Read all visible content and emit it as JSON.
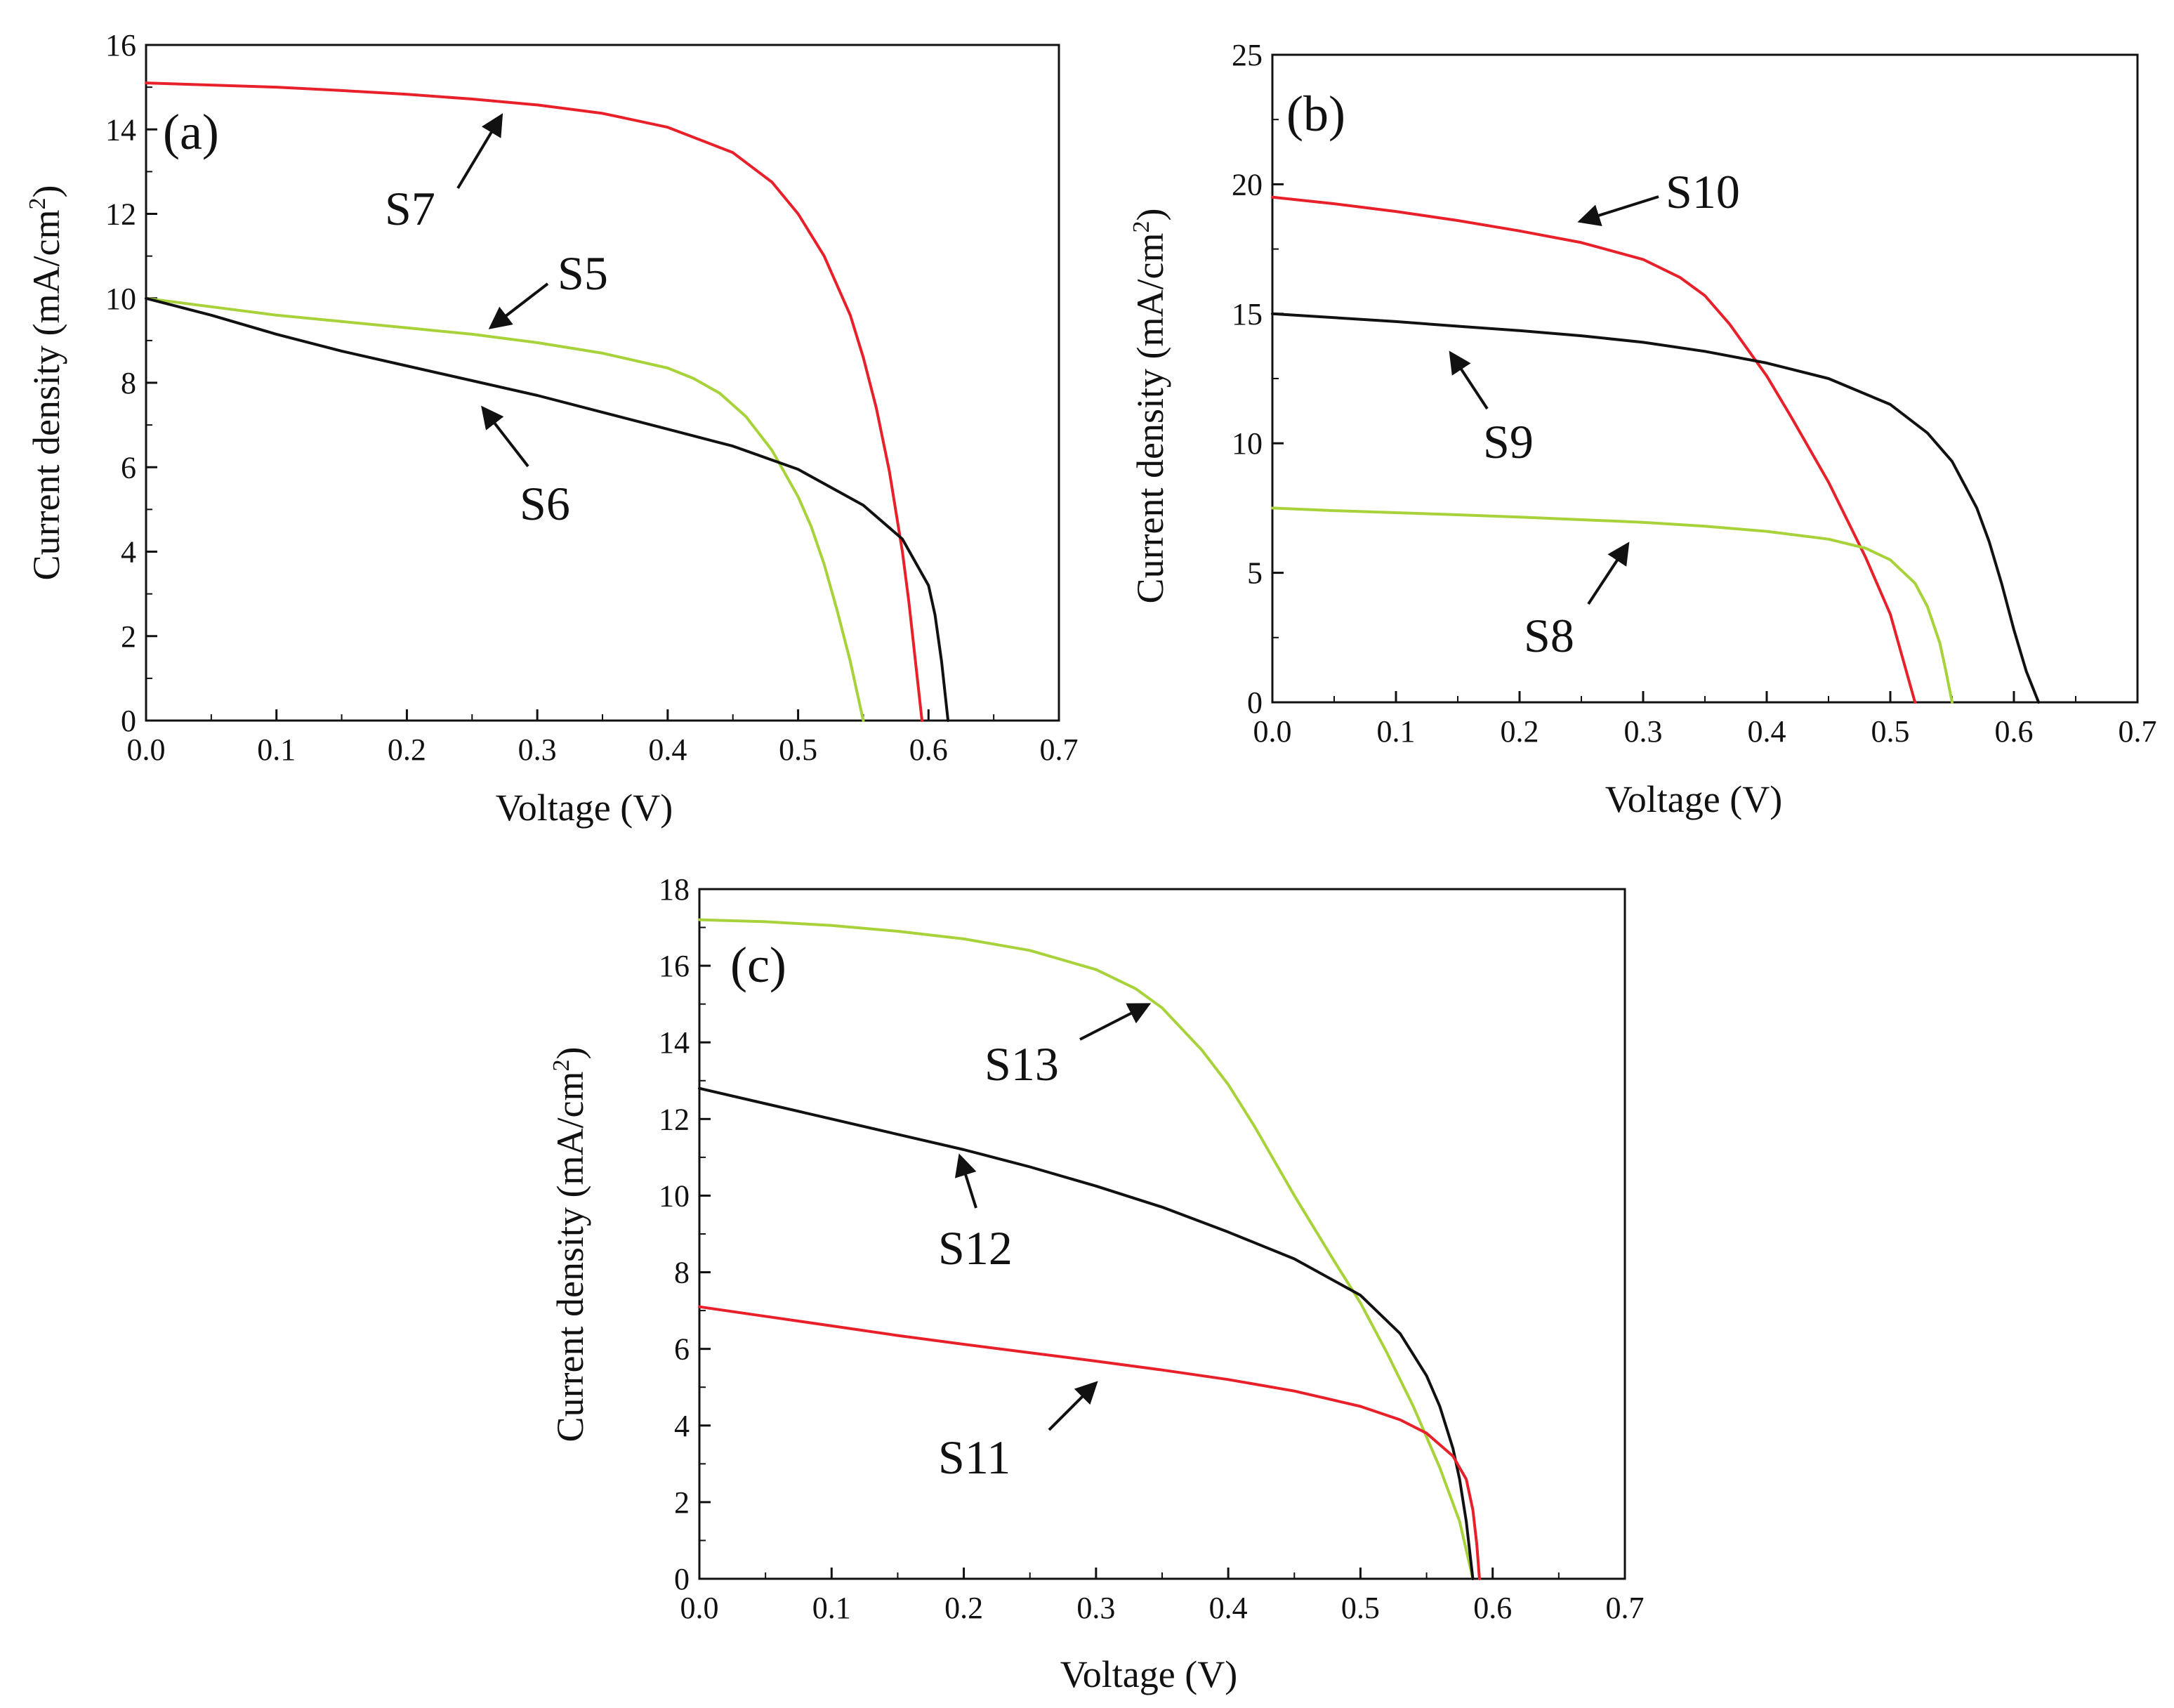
{
  "colors": {
    "black": "#111111",
    "red": "#e8202a",
    "green": "#a8d23a",
    "axis": "#111111"
  },
  "chart_data": [
    {
      "type": "line",
      "panel_label": "(a)",
      "xlabel": "Voltage (V)",
      "ylabel_main": "Current density (mA/cm",
      "ylabel_sup": "2",
      "ylabel_tail": ")",
      "xlim": [
        0,
        0.7
      ],
      "ylim": [
        0,
        16
      ],
      "xticks": [
        0,
        0.1,
        0.2,
        0.3,
        0.4,
        0.5,
        0.6,
        0.7
      ],
      "xtick_labels": [
        "0.0",
        "0.1",
        "0.2",
        "0.3",
        "0.4",
        "0.5",
        "0.6",
        "0.7"
      ],
      "yticks": [
        0,
        2,
        4,
        6,
        8,
        10,
        12,
        14,
        16
      ],
      "ytick_labels": [
        "0",
        "2",
        "4",
        "6",
        "8",
        "10",
        "12",
        "14",
        "16"
      ],
      "series": [
        {
          "name": "S7",
          "color": "red",
          "x": [
            0,
            0.05,
            0.1,
            0.15,
            0.2,
            0.25,
            0.3,
            0.35,
            0.4,
            0.45,
            0.48,
            0.5,
            0.52,
            0.54,
            0.55,
            0.56,
            0.57,
            0.58,
            0.585,
            0.59,
            0.595
          ],
          "y": [
            15.1,
            15.05,
            15.0,
            14.92,
            14.83,
            14.72,
            14.58,
            14.38,
            14.05,
            13.45,
            12.75,
            12.0,
            11.0,
            9.6,
            8.6,
            7.4,
            5.9,
            4.0,
            2.8,
            1.4,
            0
          ]
        },
        {
          "name": "S5",
          "color": "green",
          "x": [
            0,
            0.05,
            0.1,
            0.15,
            0.2,
            0.25,
            0.3,
            0.35,
            0.4,
            0.42,
            0.44,
            0.46,
            0.48,
            0.5,
            0.51,
            0.52,
            0.53,
            0.54,
            0.55
          ],
          "y": [
            10.0,
            9.8,
            9.6,
            9.45,
            9.3,
            9.15,
            8.95,
            8.7,
            8.35,
            8.1,
            7.75,
            7.2,
            6.4,
            5.3,
            4.6,
            3.7,
            2.6,
            1.4,
            0
          ]
        },
        {
          "name": "S6",
          "color": "black",
          "x": [
            0,
            0.05,
            0.1,
            0.15,
            0.2,
            0.25,
            0.3,
            0.35,
            0.4,
            0.45,
            0.5,
            0.55,
            0.58,
            0.6,
            0.605,
            0.61,
            0.615
          ],
          "y": [
            10.0,
            9.6,
            9.15,
            8.75,
            8.4,
            8.05,
            7.7,
            7.3,
            6.9,
            6.5,
            5.95,
            5.1,
            4.3,
            3.2,
            2.5,
            1.4,
            0
          ]
        }
      ],
      "annotations": [
        {
          "text": "S7",
          "series": "S7"
        },
        {
          "text": "S5",
          "series": "S5"
        },
        {
          "text": "S6",
          "series": "S6"
        }
      ]
    },
    {
      "type": "line",
      "panel_label": "(b)",
      "xlabel": "Voltage (V)",
      "ylabel_main": "Current density (mA/cm",
      "ylabel_sup": "2",
      "ylabel_tail": ")",
      "xlim": [
        0,
        0.7
      ],
      "ylim": [
        0,
        25
      ],
      "xticks": [
        0,
        0.1,
        0.2,
        0.3,
        0.4,
        0.5,
        0.6,
        0.7
      ],
      "xtick_labels": [
        "0.0",
        "0.1",
        "0.2",
        "0.3",
        "0.4",
        "0.5",
        "0.6",
        "0.7"
      ],
      "yticks": [
        0,
        5,
        10,
        15,
        20,
        25
      ],
      "ytick_labels": [
        "0",
        "5",
        "10",
        "15",
        "20",
        "25"
      ],
      "series": [
        {
          "name": "S10",
          "color": "red",
          "x": [
            0,
            0.05,
            0.1,
            0.15,
            0.2,
            0.25,
            0.3,
            0.33,
            0.35,
            0.37,
            0.4,
            0.42,
            0.45,
            0.48,
            0.5,
            0.52
          ],
          "y": [
            19.5,
            19.25,
            18.95,
            18.6,
            18.2,
            17.75,
            17.1,
            16.4,
            15.7,
            14.6,
            12.6,
            11.0,
            8.5,
            5.6,
            3.4,
            0
          ]
        },
        {
          "name": "S9",
          "color": "black",
          "x": [
            0,
            0.05,
            0.1,
            0.15,
            0.2,
            0.25,
            0.3,
            0.35,
            0.4,
            0.45,
            0.5,
            0.53,
            0.55,
            0.57,
            0.58,
            0.59,
            0.6,
            0.61,
            0.62
          ],
          "y": [
            15.0,
            14.85,
            14.7,
            14.52,
            14.35,
            14.15,
            13.9,
            13.55,
            13.1,
            12.5,
            11.5,
            10.4,
            9.3,
            7.5,
            6.2,
            4.6,
            2.8,
            1.2,
            0
          ]
        },
        {
          "name": "S8",
          "color": "green",
          "x": [
            0,
            0.05,
            0.1,
            0.15,
            0.2,
            0.25,
            0.3,
            0.35,
            0.4,
            0.45,
            0.48,
            0.5,
            0.52,
            0.53,
            0.54,
            0.545,
            0.55
          ],
          "y": [
            7.5,
            7.4,
            7.32,
            7.24,
            7.15,
            7.05,
            6.95,
            6.8,
            6.6,
            6.3,
            5.95,
            5.5,
            4.6,
            3.7,
            2.3,
            1.2,
            0
          ]
        }
      ],
      "annotations": [
        {
          "text": "S10",
          "series": "S10"
        },
        {
          "text": "S9",
          "series": "S9"
        },
        {
          "text": "S8",
          "series": "S8"
        }
      ]
    },
    {
      "type": "line",
      "panel_label": "(c)",
      "xlabel": "Voltage (V)",
      "ylabel_main": "Current density (mA/cm",
      "ylabel_sup": "2",
      "ylabel_tail": ")",
      "xlim": [
        0,
        0.7
      ],
      "ylim": [
        0,
        18
      ],
      "xticks": [
        0,
        0.1,
        0.2,
        0.3,
        0.4,
        0.5,
        0.6,
        0.7
      ],
      "xtick_labels": [
        "0.0",
        "0.1",
        "0.2",
        "0.3",
        "0.4",
        "0.5",
        "0.6",
        "0.7"
      ],
      "yticks": [
        0,
        2,
        4,
        6,
        8,
        10,
        12,
        14,
        16,
        18
      ],
      "ytick_labels": [
        "0",
        "2",
        "4",
        "6",
        "8",
        "10",
        "12",
        "14",
        "16",
        "18"
      ],
      "series": [
        {
          "name": "S13",
          "color": "green",
          "x": [
            0,
            0.05,
            0.1,
            0.15,
            0.2,
            0.25,
            0.3,
            0.33,
            0.35,
            0.38,
            0.4,
            0.42,
            0.45,
            0.48,
            0.5,
            0.52,
            0.54,
            0.56,
            0.575,
            0.585
          ],
          "y": [
            17.2,
            17.15,
            17.05,
            16.9,
            16.7,
            16.4,
            15.9,
            15.4,
            14.9,
            13.8,
            12.9,
            11.8,
            10.0,
            8.3,
            7.2,
            5.9,
            4.5,
            2.9,
            1.5,
            0
          ]
        },
        {
          "name": "S12",
          "color": "black",
          "x": [
            0,
            0.05,
            0.1,
            0.15,
            0.2,
            0.25,
            0.3,
            0.35,
            0.4,
            0.45,
            0.5,
            0.53,
            0.55,
            0.56,
            0.57,
            0.575,
            0.58,
            0.585
          ],
          "y": [
            12.8,
            12.4,
            12.0,
            11.6,
            11.2,
            10.75,
            10.25,
            9.7,
            9.05,
            8.35,
            7.4,
            6.4,
            5.3,
            4.5,
            3.4,
            2.6,
            1.5,
            0
          ]
        },
        {
          "name": "S11",
          "color": "red",
          "x": [
            0,
            0.05,
            0.1,
            0.15,
            0.2,
            0.25,
            0.3,
            0.35,
            0.4,
            0.45,
            0.5,
            0.53,
            0.55,
            0.57,
            0.58,
            0.585,
            0.588,
            0.59
          ],
          "y": [
            7.1,
            6.85,
            6.6,
            6.35,
            6.12,
            5.9,
            5.68,
            5.45,
            5.2,
            4.9,
            4.5,
            4.15,
            3.8,
            3.2,
            2.6,
            1.8,
            0.9,
            0
          ]
        }
      ],
      "annotations": [
        {
          "text": "S13",
          "series": "S13"
        },
        {
          "text": "S12",
          "series": "S12"
        },
        {
          "text": "S11",
          "series": "S11"
        }
      ]
    }
  ]
}
